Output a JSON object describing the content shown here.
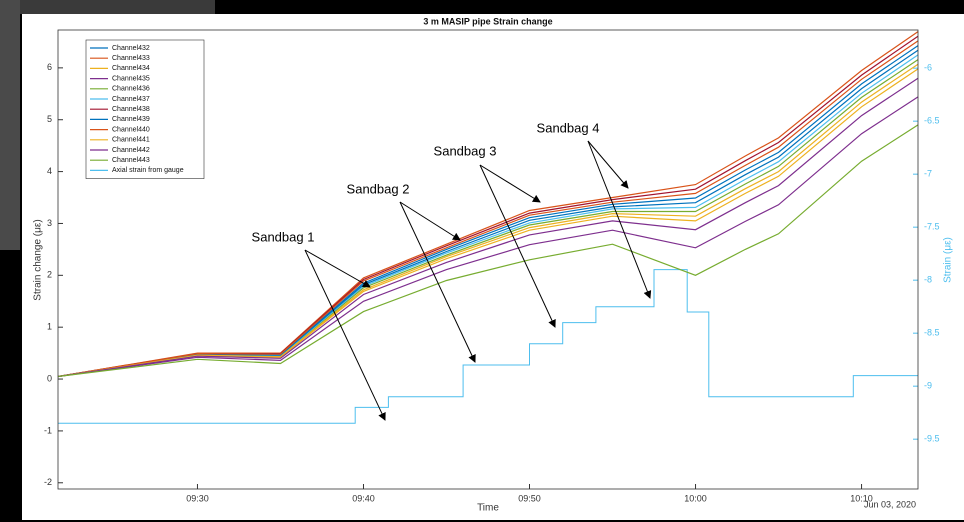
{
  "chart_data": {
    "type": "line",
    "title": "3 m MASIP pipe Strain change",
    "xlabel": "Time",
    "x_date_label": "Jun 03, 2020",
    "ylabel": "Strain change (με)",
    "y2label": "Strain (με)",
    "legend": "northwest",
    "x": [
      561.6,
      570,
      575,
      580,
      585,
      590,
      595,
      600,
      603,
      605,
      610,
      613.4
    ],
    "xlim": [
      561.6,
      613.4
    ],
    "xticks": [
      {
        "value": 570,
        "label": "09:30"
      },
      {
        "value": 580,
        "label": "09:40"
      },
      {
        "value": 590,
        "label": "09:50"
      },
      {
        "value": 600,
        "label": "10:00"
      },
      {
        "value": 610,
        "label": "10:10"
      }
    ],
    "ylim": [
      -2.12,
      6.73
    ],
    "yticks": [
      -2,
      -1,
      0,
      1,
      2,
      3,
      4,
      5,
      6
    ],
    "y2lim": [
      -9.97,
      -5.64
    ],
    "y2ticks": [
      -9.5,
      -9,
      -8.5,
      -8,
      -7.5,
      -7,
      -6.5,
      -6
    ],
    "series": [
      {
        "name": "Channel432",
        "color": "#0072BD",
        "values": [
          0.05,
          0.48,
          0.47,
          1.85,
          2.5,
          3.11,
          3.37,
          3.49,
          4.03,
          4.37,
          5.69,
          6.43
        ]
      },
      {
        "name": "Channel433",
        "color": "#D95319",
        "values": [
          0.05,
          0.5,
          0.5,
          1.95,
          2.6,
          3.25,
          3.5,
          3.75,
          4.3,
          4.65,
          5.95,
          6.7
        ]
      },
      {
        "name": "Channel434",
        "color": "#EDB120",
        "values": [
          0.05,
          0.45,
          0.42,
          1.69,
          2.32,
          2.87,
          3.14,
          3.05,
          3.58,
          3.91,
          5.25,
          5.98
        ]
      },
      {
        "name": "Channel435",
        "color": "#7E2F8E",
        "values": [
          0.05,
          0.42,
          0.36,
          1.5,
          2.11,
          2.59,
          2.87,
          2.53,
          3.04,
          3.36,
          4.73,
          5.44
        ]
      },
      {
        "name": "Channel436",
        "color": "#77AC30",
        "values": [
          0.05,
          0.46,
          0.44,
          1.76,
          2.39,
          2.97,
          3.23,
          3.23,
          3.76,
          4.1,
          5.43,
          6.16
        ]
      },
      {
        "name": "Channel437",
        "color": "#4DBEEE",
        "values": [
          0.05,
          0.47,
          0.45,
          1.79,
          2.43,
          3.01,
          3.28,
          3.31,
          3.85,
          4.19,
          5.51,
          6.25
        ]
      },
      {
        "name": "Channel438",
        "color": "#A2142F",
        "values": [
          0.05,
          0.49,
          0.49,
          1.92,
          2.57,
          3.2,
          3.46,
          3.66,
          4.21,
          4.56,
          5.86,
          6.61
        ]
      },
      {
        "name": "Channel439",
        "color": "#0072BD",
        "values": [
          0.05,
          0.48,
          0.46,
          1.82,
          2.46,
          3.06,
          3.32,
          3.4,
          3.94,
          4.28,
          5.6,
          6.34
        ]
      },
      {
        "name": "Channel440",
        "color": "#D95319",
        "values": [
          0.05,
          0.49,
          0.48,
          1.89,
          2.53,
          3.16,
          3.41,
          3.58,
          4.12,
          4.47,
          5.78,
          6.52
        ]
      },
      {
        "name": "Channel441",
        "color": "#EDB120",
        "values": [
          0.05,
          0.46,
          0.43,
          1.72,
          2.36,
          2.92,
          3.19,
          3.14,
          3.67,
          4.0,
          5.34,
          6.07
        ]
      },
      {
        "name": "Channel442",
        "color": "#7E2F8E",
        "values": [
          0.05,
          0.44,
          0.4,
          1.63,
          2.25,
          2.78,
          3.05,
          2.88,
          3.4,
          3.73,
          5.08,
          5.8
        ]
      },
      {
        "name": "Channel443",
        "color": "#77AC30",
        "values": [
          0.05,
          0.38,
          0.3,
          1.3,
          1.9,
          2.3,
          2.6,
          2.0,
          2.5,
          2.8,
          4.2,
          4.9
        ]
      },
      {
        "name": "Axial strain from gauge",
        "color": "#4DBEEE",
        "axis": "y2",
        "x": [
          561.6,
          579.5,
          579.5,
          581.5,
          581.5,
          586,
          586,
          590,
          590,
          592,
          592,
          594,
          594,
          597.5,
          597.5,
          599.5,
          599.5,
          600.8,
          600.8,
          609.5,
          609.5,
          613.4
        ],
        "values": [
          -9.35,
          -9.35,
          -9.2,
          -9.2,
          -9.1,
          -9.1,
          -8.8,
          -8.8,
          -8.6,
          -8.6,
          -8.4,
          -8.4,
          -8.25,
          -8.25,
          -7.9,
          -7.9,
          -8.3,
          -8.3,
          -9.1,
          -9.1,
          -8.9,
          -8.9
        ]
      }
    ],
    "annotations": [
      "Sandbag 1",
      "Sandbag 2",
      "Sandbag 3",
      "Sandbag 4"
    ]
  }
}
